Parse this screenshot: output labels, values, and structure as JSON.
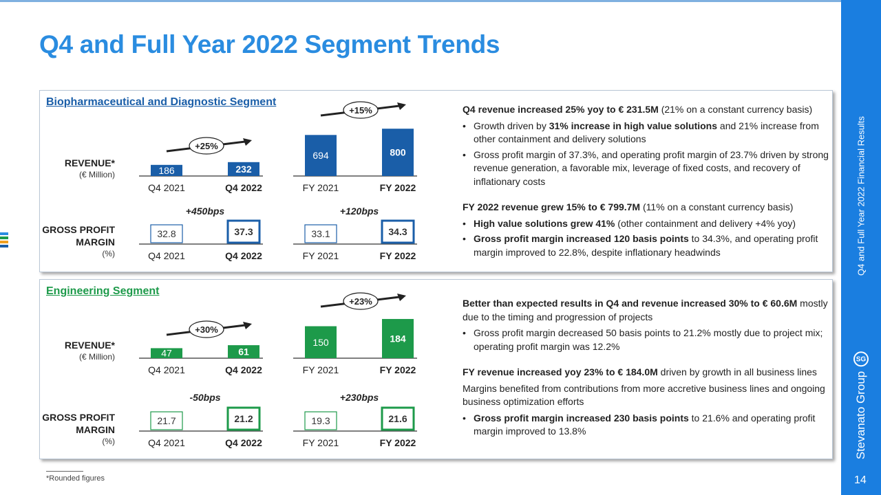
{
  "title": "Q4 and Full Year 2022 Segment Trends",
  "sidebar": {
    "text": "Q4 and Full Year 2022 Financial Results",
    "brand": "Stevanato Group",
    "logo": "SG",
    "page": "14"
  },
  "colors": {
    "title": "#2a8ce0",
    "bio": "#1a5ea8",
    "eng": "#1d9a4a",
    "sidebar": "#1a7ee0"
  },
  "labels": {
    "revenue": "REVENUE*",
    "revenue_unit": "(€ Million)",
    "gpm_line1": "GROSS PROFIT",
    "gpm_line2": "MARGIN",
    "gpm_unit": "(%)"
  },
  "footnote": "*Rounded figures",
  "bio": {
    "title": "Biopharmaceutical and Diagnostic Segment",
    "text": {
      "p1_bold": "Q4 revenue increased 25% yoy to € 231.5M",
      "p1_rest": " (21% on a constant currency basis)",
      "b1_a": "Growth driven by ",
      "b1_bold": "31% increase in high value solutions",
      "b1_c": " and 21% increase from other containment and delivery solutions",
      "b2": "Gross profit margin of 37.3%, and operating profit margin of 23.7% driven by strong revenue generation, a favorable mix, leverage of fixed costs, and recovery of inflationary costs",
      "p2_bold": "FY 2022 revenue grew 15% to € 799.7M",
      "p2_rest": " (11% on a constant currency basis)",
      "b3_bold": "High value solutions grew 41%",
      "b3_rest": " (other containment and delivery +4% yoy)",
      "b4_bold": "Gross profit margin increased 120 basis points",
      "b4_rest": " to 34.3%, and operating profit margin improved to 22.8%, despite inflationary headwinds"
    }
  },
  "eng": {
    "title": "Engineering Segment",
    "text": {
      "p1_bold": "Better than expected results in Q4 and revenue increased 30% to € 60.6M",
      "p1_rest": " mostly due to the timing and progression of projects",
      "b1": "Gross profit margin decreased 50 basis points to 21.2% mostly due to project mix; operating profit margin was 12.2%",
      "p2_bold": "FY revenue increased yoy 23% to € 184.0M",
      "p2_rest": " driven by growth in all business lines",
      "p3": "Margins benefited from contributions from more accretive business lines and ongoing business optimization efforts",
      "b2_bold": "Gross profit margin increased 230 basis points",
      "b2_rest": " to 21.6% and operating profit margin improved to 13.8%"
    }
  },
  "chart_data": [
    {
      "type": "bar",
      "segment": "Biopharmaceutical and Diagnostic",
      "metric": "Revenue",
      "unit": "€ Million",
      "categories": [
        "Q4 2021",
        "Q4 2022"
      ],
      "values": [
        186,
        232
      ],
      "change": "+25%"
    },
    {
      "type": "bar",
      "segment": "Biopharmaceutical and Diagnostic",
      "metric": "Revenue",
      "unit": "€ Million",
      "categories": [
        "FY 2021",
        "FY 2022"
      ],
      "values": [
        694,
        800
      ],
      "change": "+15%"
    },
    {
      "type": "table",
      "segment": "Biopharmaceutical and Diagnostic",
      "metric": "Gross Profit Margin",
      "unit": "%",
      "categories": [
        "Q4 2021",
        "Q4 2022"
      ],
      "values": [
        32.8,
        37.3
      ],
      "change": "+450bps"
    },
    {
      "type": "table",
      "segment": "Biopharmaceutical and Diagnostic",
      "metric": "Gross Profit Margin",
      "unit": "%",
      "categories": [
        "FY 2021",
        "FY 2022"
      ],
      "values": [
        33.1,
        34.3
      ],
      "change": "+120bps"
    },
    {
      "type": "bar",
      "segment": "Engineering",
      "metric": "Revenue",
      "unit": "€ Million",
      "categories": [
        "Q4 2021",
        "Q4 2022"
      ],
      "values": [
        47,
        61
      ],
      "change": "+30%"
    },
    {
      "type": "bar",
      "segment": "Engineering",
      "metric": "Revenue",
      "unit": "€ Million",
      "categories": [
        "FY 2021",
        "FY 2022"
      ],
      "values": [
        150,
        184
      ],
      "change": "+23%"
    },
    {
      "type": "table",
      "segment": "Engineering",
      "metric": "Gross Profit Margin",
      "unit": "%",
      "categories": [
        "Q4 2021",
        "Q4 2022"
      ],
      "values": [
        21.7,
        21.2
      ],
      "change": "-50bps"
    },
    {
      "type": "table",
      "segment": "Engineering",
      "metric": "Gross Profit Margin",
      "unit": "%",
      "categories": [
        "FY 2021",
        "FY 2022"
      ],
      "values": [
        19.3,
        21.6
      ],
      "change": "+230bps"
    }
  ]
}
